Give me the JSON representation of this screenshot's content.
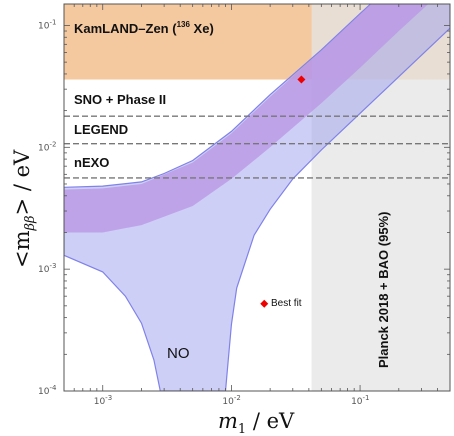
{
  "chart_data": {
    "type": "area",
    "xlabel_main": "m",
    "xlabel_sub": "1",
    "xlabel_unit": " / eV",
    "ylabel_main": "<m",
    "ylabel_sub": "ββ",
    "ylabel_close": ">",
    "ylabel_unit": " / eV",
    "xscale": "log",
    "yscale": "log",
    "xlim": [
      0.0005,
      0.5
    ],
    "ylim": [
      0.0001,
      0.15
    ],
    "x_ticks": [
      {
        "value": 0.001,
        "base": "10",
        "exp": "-3"
      },
      {
        "value": 0.01,
        "base": "10",
        "exp": "-2"
      },
      {
        "value": 0.1,
        "base": "10",
        "exp": "-1"
      }
    ],
    "y_ticks": [
      {
        "value": 0.0001,
        "base": "10",
        "exp": "-4"
      },
      {
        "value": 0.001,
        "base": "10",
        "exp": "-3"
      },
      {
        "value": 0.01,
        "base": "10",
        "exp": "-2"
      },
      {
        "value": 0.1,
        "base": "10",
        "exp": "-1"
      }
    ],
    "excluded_regions": [
      {
        "label_pre": "KamLAND–Zen (",
        "label_sup": "136",
        "label_post": " Xe)",
        "y_min": 0.036,
        "color": "#f5c9a0"
      },
      {
        "label": "Planck 2018 + BAO (95%)",
        "x_min": 0.042,
        "color": "#e4e4e4"
      }
    ],
    "sensitivity_lines": [
      {
        "label": "SNO + Phase II",
        "y": 0.018
      },
      {
        "label": "LEGEND",
        "y": 0.0107
      },
      {
        "label": "nEXO",
        "y": 0.0056
      }
    ],
    "bands": [
      {
        "label": "NO",
        "color": "#9da0f0",
        "upper": [
          [
            0.0005,
            0.0047
          ],
          [
            0.001,
            0.0048
          ],
          [
            0.002,
            0.0052
          ],
          [
            0.003,
            0.0061
          ],
          [
            0.005,
            0.0078
          ],
          [
            0.01,
            0.0135
          ],
          [
            0.02,
            0.027
          ],
          [
            0.05,
            0.063
          ],
          [
            0.1,
            0.125
          ],
          [
            0.15,
            0.185
          ]
        ],
        "lower": [
          [
            0.0005,
            0.0013
          ],
          [
            0.001,
            0.00095
          ],
          [
            0.0015,
            0.0006
          ],
          [
            0.002,
            0.00036
          ],
          [
            0.0025,
            0.00018
          ],
          [
            0.0028,
            0.0001
          ]
        ],
        "lower_right": [
          [
            0.009,
            0.0001
          ],
          [
            0.01,
            0.00035
          ],
          [
            0.011,
            0.0007
          ],
          [
            0.015,
            0.0019
          ],
          [
            0.02,
            0.0031
          ],
          [
            0.03,
            0.0055
          ],
          [
            0.05,
            0.0095
          ],
          [
            0.1,
            0.019
          ],
          [
            0.2,
            0.038
          ],
          [
            0.5,
            0.095
          ]
        ]
      },
      {
        "label": "",
        "color": "#b994e4",
        "upper": [
          [
            0.0005,
            0.0045
          ],
          [
            0.001,
            0.0046
          ],
          [
            0.002,
            0.005
          ],
          [
            0.005,
            0.0075
          ],
          [
            0.01,
            0.013
          ],
          [
            0.02,
            0.026
          ],
          [
            0.05,
            0.062
          ],
          [
            0.15,
            0.185
          ]
        ],
        "lower": [
          [
            0.0005,
            0.002
          ],
          [
            0.001,
            0.002
          ],
          [
            0.002,
            0.0023
          ],
          [
            0.005,
            0.0033
          ],
          [
            0.01,
            0.0055
          ],
          [
            0.02,
            0.01
          ],
          [
            0.05,
            0.023
          ],
          [
            0.1,
            0.045
          ],
          [
            0.2,
            0.09
          ],
          [
            0.35,
            0.155
          ]
        ]
      }
    ],
    "points": [
      {
        "label": "Best fit",
        "x": 0.018,
        "y": 0.00052,
        "color": "#ee0000"
      },
      {
        "label": "",
        "x": 0.035,
        "y": 0.036,
        "color": "#ee0000"
      }
    ],
    "region_label": "NO"
  }
}
